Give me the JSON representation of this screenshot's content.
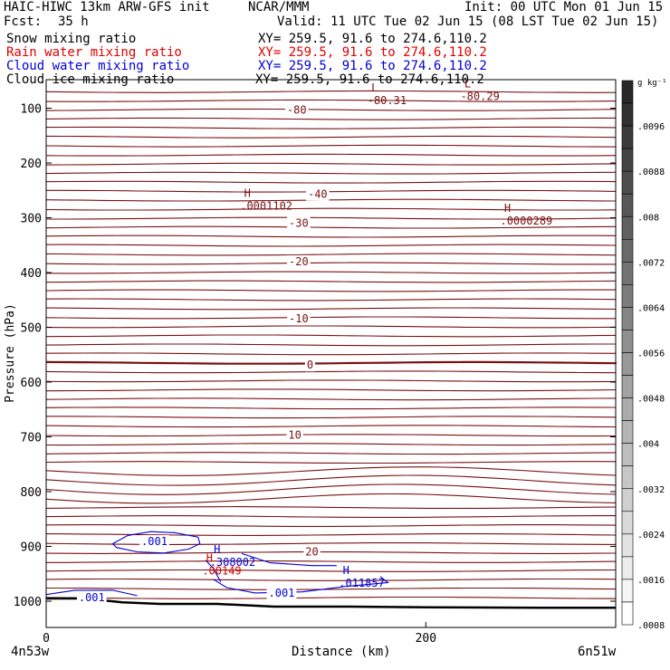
{
  "header": {
    "model": "HAIC-HIWC 13km ARW-GFS init",
    "center": "NCAR/MMM",
    "init": "Init: 00 UTC Mon 01 Jun 15",
    "fcst_label": "Fcst:",
    "fcst_value": "35 h",
    "valid": "Valid: 11 UTC Tue 02 Jun 15 (08 LST Tue 02 Jun 15)"
  },
  "fields": [
    {
      "name": "Snow mixing ratio",
      "xy": "XY= 259.5, 91.6 to 274.6,110.2",
      "color": "#000000"
    },
    {
      "name": "Rain water mixing ratio",
      "xy": "XY= 259.5, 91.6 to 274.6,110.2",
      "color": "#e00000"
    },
    {
      "name": "Cloud water mixing ratio",
      "xy": "XY= 259.5, 91.6 to 274.6,110.2",
      "color": "#0000d8"
    },
    {
      "name": "Cloud ice mixing ratio",
      "xy": "XY= 259.5, 91.6 to 274.6,110.2",
      "color": "#000000"
    }
  ],
  "chart_data": {
    "type": "contour cross-section",
    "xlabel": "Distance (km)",
    "ylabel": "Pressure (hPa)",
    "x_ticks": [
      0,
      200
    ],
    "y_ticks": [
      100,
      200,
      300,
      400,
      500,
      600,
      700,
      800,
      900,
      1000
    ],
    "xlim": [
      0,
      300
    ],
    "ylim": [
      1050,
      50
    ],
    "left_endpoint": "4n53w",
    "right_endpoint": "6n51w",
    "colorbar": {
      "unit": "g kg⁻¹",
      "labels": [
        ".0096",
        ".0088",
        ".008",
        ".0072",
        ".0064",
        ".0056",
        ".0048",
        ".004",
        ".0032",
        ".0024",
        ".0016",
        ".0008"
      ]
    },
    "temperature_labels": [
      {
        "label": "-80",
        "x": 132,
        "p": 103
      },
      {
        "label": "-40",
        "x": 143,
        "p": 257
      },
      {
        "label": "-30",
        "x": 133,
        "p": 310
      },
      {
        "label": "-20",
        "x": 133,
        "p": 380
      },
      {
        "label": "-10",
        "x": 133,
        "p": 484
      },
      {
        "label": "0",
        "x": 139,
        "p": 569
      },
      {
        "label": "10",
        "x": 131,
        "p": 697
      },
      {
        "label": "20",
        "x": 140,
        "p": 910
      }
    ],
    "temperature_extrema": [
      {
        "symbol": "L",
        "value": "-80.31",
        "x": 173,
        "p": 89
      },
      {
        "symbol": "L",
        "value": "-80.29",
        "x": 222,
        "p": 82
      },
      {
        "symbol": "H",
        "value": ".0001102",
        "x": 106,
        "p": 282
      },
      {
        "symbol": "H",
        "value": ".0000289",
        "x": 243,
        "p": 309
      }
    ],
    "cloud_water_labels": [
      {
        "label": ".001",
        "x": 57,
        "p": 891
      },
      {
        "label": ".001",
        "x": 24,
        "p": 993
      },
      {
        "label": ".001",
        "x": 124,
        "p": 985
      }
    ],
    "cloud_water_extrema": [
      {
        "symbol": "H",
        "value": ".308002",
        "x": 90,
        "p": 932
      },
      {
        "symbol": "H",
        "value": ".011857",
        "x": 158,
        "p": 970
      }
    ],
    "rain_extrema": [
      {
        "symbol": "H",
        "value": ".00149",
        "x": 86,
        "p": 948
      }
    ]
  }
}
